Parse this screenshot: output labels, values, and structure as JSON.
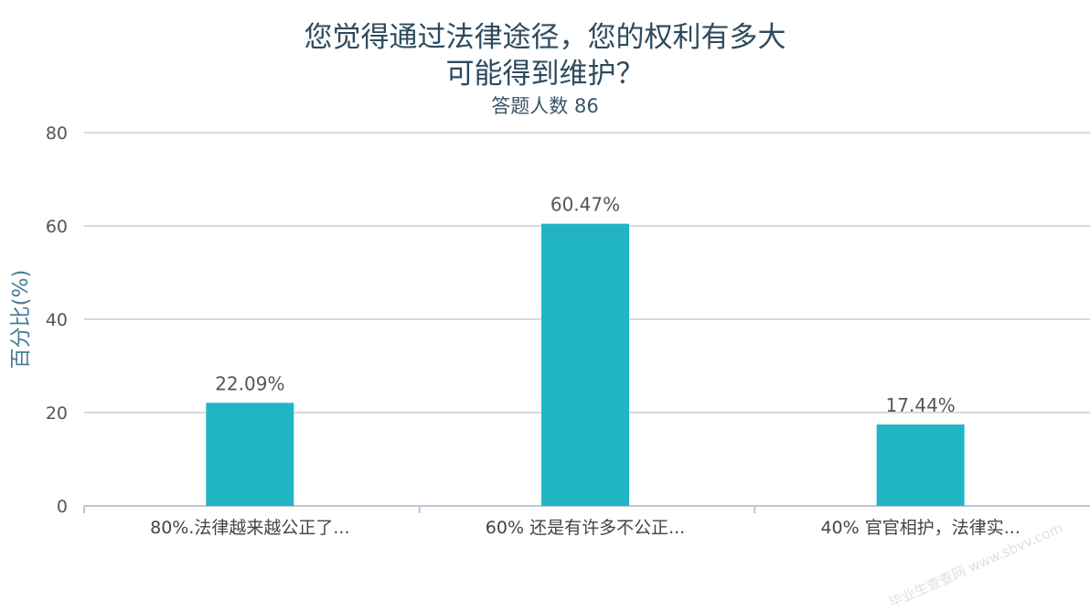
{
  "chart_data": {
    "type": "bar",
    "title_lines": [
      "您觉得通过法律途径，您的权利有多大",
      "可能得到维护？"
    ],
    "subtitle": "答题人数 86",
    "ylabel": "百分比(%)",
    "xlabel": "",
    "ylim": [
      0,
      80
    ],
    "yticks": [
      0,
      20,
      40,
      60,
      80
    ],
    "grid": true,
    "categories": [
      "80%.法律越来越公正了...",
      "60% 还是有许多不公正...",
      "40% 官官相护，法律实..."
    ],
    "values": [
      22.09,
      60.47,
      17.44
    ],
    "value_labels": [
      "22.09%",
      "60.47%",
      "17.44%"
    ],
    "bar_color": "#21b5c4",
    "grid_color": "#c8cdd2",
    "axis_color": "#b9c8d6"
  },
  "watermark": "毕业生查查网 www.sbvv.com"
}
